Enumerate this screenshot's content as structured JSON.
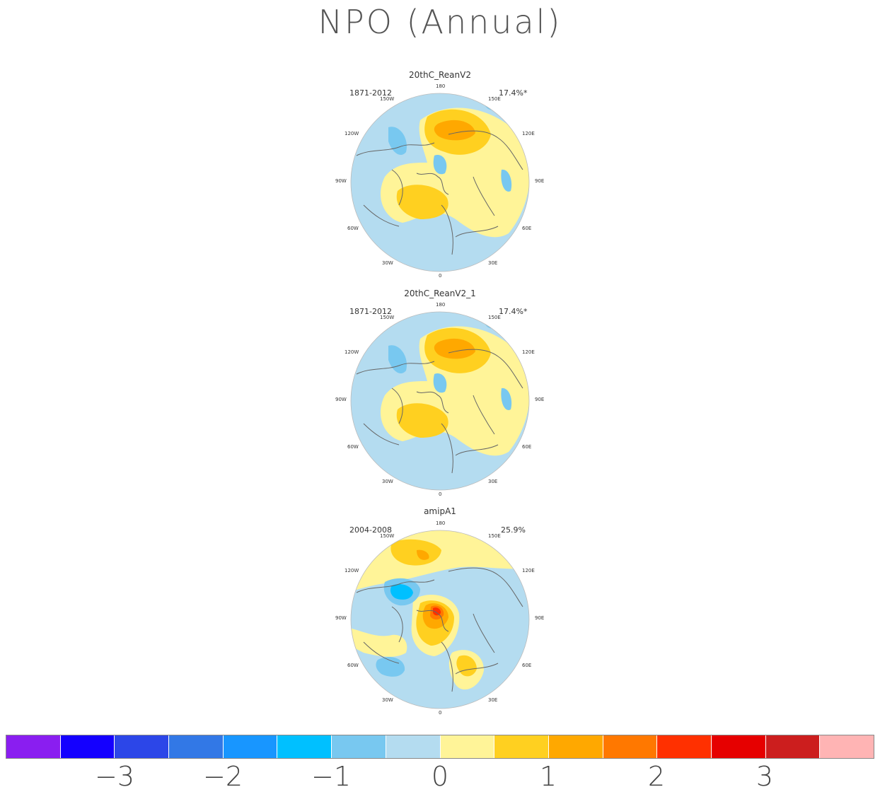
{
  "title": "NPO (Annual)",
  "colors": {
    "neg1": "#b4dcf0",
    "pos1": "#fff498",
    "pos2": "#ffd020",
    "pos3": "#ffa800",
    "pos4": "#ff7800",
    "pos5": "#ff3000",
    "pos6": "#e60000",
    "neg2": "#78c8f0",
    "neg3": "#00c0ff",
    "neg4": "#1896ff",
    "coast": "#666666"
  },
  "panels": [
    {
      "name": "20thC_ReanV2",
      "years": "1871-2012",
      "variance": "17.4%*",
      "lon_labels": {
        "top": "180",
        "bottom": "0",
        "l150": "150W",
        "r150": "150E",
        "l120": "120W",
        "r120": "120E",
        "l90": "90W",
        "r90": "90E",
        "l60": "60W",
        "r60": "60E",
        "l30": "30W",
        "r30": "30E"
      }
    },
    {
      "name": "20thC_ReanV2_1",
      "years": "1871-2012",
      "variance": "17.4%*",
      "lon_labels": {
        "top": "180",
        "bottom": "0",
        "l150": "150W",
        "r150": "150E",
        "l120": "120W",
        "r120": "120E",
        "l90": "90W",
        "r90": "90E",
        "l60": "60W",
        "r60": "60E",
        "l30": "30W",
        "r30": "30E"
      }
    },
    {
      "name": "amipA1",
      "years": "2004-2008",
      "variance": "25.9%",
      "lon_labels": {
        "top": "180",
        "bottom": "0",
        "l150": "150W",
        "r150": "150E",
        "l120": "120W",
        "r120": "120E",
        "l90": "90W",
        "r90": "90E",
        "l60": "60W",
        "r60": "60E",
        "l30": "30W",
        "r30": "30E"
      }
    }
  ],
  "colorbar": {
    "colors": [
      "#8a1ef0",
      "#1400ff",
      "#2c46e8",
      "#3278e6",
      "#1896ff",
      "#00c0ff",
      "#78c8f0",
      "#b4dcf0",
      "#fff498",
      "#ffd020",
      "#ffa800",
      "#ff7800",
      "#ff3000",
      "#e60000",
      "#cc1e1e",
      "#ffb4b4"
    ],
    "labels": [
      "−3",
      "−2",
      "−1",
      "0",
      "1",
      "2",
      "3"
    ]
  }
}
